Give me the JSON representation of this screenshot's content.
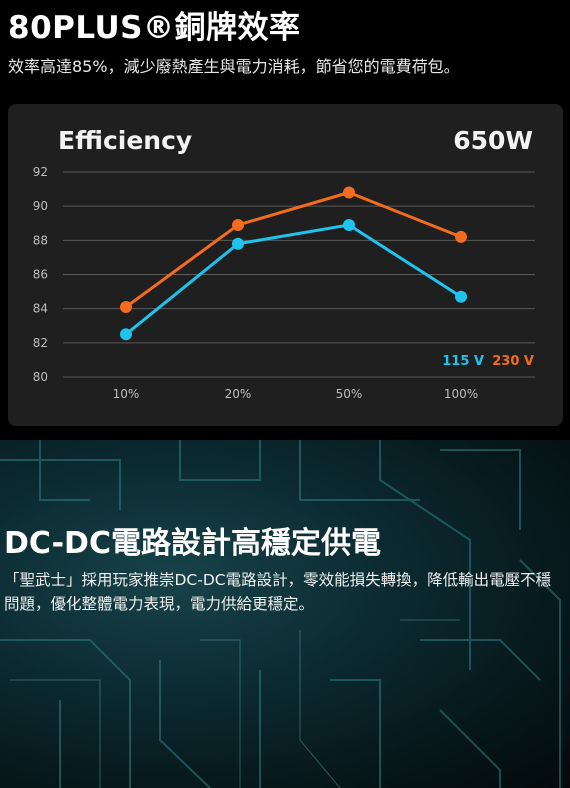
{
  "header": {
    "title": "80PLUS®銅牌效率",
    "subtitle": "效率高達85%，減少廢熱產生與電力消耗，節省您的電費荷包。"
  },
  "card": {
    "title": "Efficiency",
    "wattage": "650W"
  },
  "chart_data": {
    "type": "line",
    "title": "Efficiency",
    "categories": [
      "10%",
      "20%",
      "50%",
      "100%"
    ],
    "series": [
      {
        "name": "115 V",
        "color": "#1ec3ee",
        "values": [
          82.5,
          87.8,
          88.9,
          84.7
        ]
      },
      {
        "name": "230 V",
        "color": "#f26b1f",
        "values": [
          84.1,
          88.9,
          90.8,
          88.2
        ]
      }
    ],
    "ylim": [
      80,
      92
    ],
    "yticks": [
      80,
      82,
      84,
      86,
      88,
      90,
      92
    ],
    "grid": true,
    "legend": "bottom-right"
  },
  "section2": {
    "title": "DC-DC電路設計高穩定供電",
    "body": "「聖武士」採用玩家推崇DC-DC電路設計，零效能損失轉換，降低輸出電壓不穩問題，優化整體電力表現，電力供給更穩定。"
  }
}
